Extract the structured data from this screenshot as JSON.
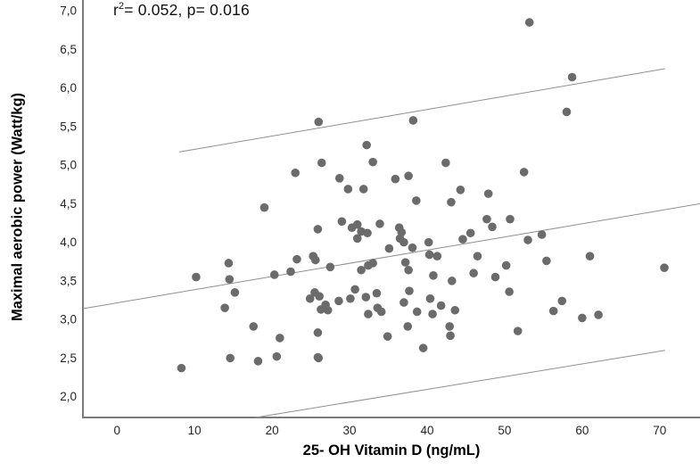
{
  "chart_data": {
    "type": "scatter",
    "title": "",
    "annotation": {
      "r_label": "r",
      "exponent": "2",
      "rest": "= 0.052, p= 0.016"
    },
    "xlabel": "25- OH Vitamin D (ng/mL)",
    "ylabel": "Maximal aerobic power  (Watt/kg)",
    "xlim": [
      -4.4,
      75.2
    ],
    "ylim": [
      1.73,
      7.14
    ],
    "x_ticks": [
      0,
      10,
      20,
      30,
      40,
      50,
      60,
      70
    ],
    "x_tick_labels": [
      "0",
      "10",
      "20",
      "30",
      "40",
      "50",
      "60",
      "70"
    ],
    "y_ticks": [
      2.0,
      2.5,
      3.0,
      3.5,
      4.0,
      4.5,
      5.0,
      5.5,
      6.0,
      6.5,
      7.0
    ],
    "y_tick_labels": [
      "2,0",
      "2,5",
      "3,0",
      "3,5",
      "4,0",
      "4,5",
      "5,0",
      "5,5",
      "6,0",
      "6,5",
      "7,0"
    ],
    "grid": false,
    "legend": "none",
    "point_color": "#6b6b6b",
    "line_color": "#8f8f8f",
    "axis_color": "#7a7a7a",
    "tick_text_color": "#262626",
    "lines": [
      {
        "name": "regression-line",
        "x1": -4.4,
        "y1": 3.14,
        "x2": 75.2,
        "y2": 4.5
      },
      {
        "name": "upper-interval-line",
        "x1": 8.0,
        "y1": 5.17,
        "x2": 70.7,
        "y2": 6.25
      },
      {
        "name": "lower-interval-line",
        "x1": 17.9,
        "y1": 1.73,
        "x2": 70.7,
        "y2": 2.6
      }
    ],
    "points": [
      [
        8.3,
        2.37
      ],
      [
        10.2,
        3.55
      ],
      [
        13.9,
        3.15
      ],
      [
        14.4,
        3.73
      ],
      [
        14.5,
        3.52
      ],
      [
        14.6,
        2.5
      ],
      [
        15.2,
        3.35
      ],
      [
        17.6,
        2.91
      ],
      [
        18.2,
        2.46
      ],
      [
        19.0,
        4.45
      ],
      [
        20.3,
        3.58
      ],
      [
        20.6,
        2.52
      ],
      [
        21.0,
        2.76
      ],
      [
        22.4,
        3.62
      ],
      [
        23.0,
        4.9
      ],
      [
        23.2,
        3.78
      ],
      [
        24.9,
        3.27
      ],
      [
        25.3,
        3.82
      ],
      [
        25.5,
        3.35
      ],
      [
        25.6,
        3.77
      ],
      [
        25.9,
        4.17
      ],
      [
        25.9,
        2.83
      ],
      [
        25.9,
        2.51
      ],
      [
        26.0,
        5.56
      ],
      [
        26.0,
        2.5
      ],
      [
        26.1,
        3.3
      ],
      [
        26.3,
        3.13
      ],
      [
        26.4,
        5.03
      ],
      [
        26.9,
        3.19
      ],
      [
        27.2,
        3.12
      ],
      [
        27.5,
        3.68
      ],
      [
        28.6,
        3.24
      ],
      [
        28.7,
        4.83
      ],
      [
        29.0,
        4.27
      ],
      [
        29.8,
        4.69
      ],
      [
        30.1,
        3.27
      ],
      [
        30.3,
        4.19
      ],
      [
        30.7,
        3.39
      ],
      [
        31.0,
        4.23
      ],
      [
        31.0,
        4.05
      ],
      [
        31.5,
        4.14
      ],
      [
        31.5,
        3.64
      ],
      [
        31.8,
        4.69
      ],
      [
        32.1,
        3.29
      ],
      [
        32.2,
        5.26
      ],
      [
        32.3,
        4.12
      ],
      [
        32.4,
        3.7
      ],
      [
        32.4,
        3.07
      ],
      [
        33.0,
        5.04
      ],
      [
        33.0,
        3.73
      ],
      [
        33.5,
        3.34
      ],
      [
        33.6,
        3.15
      ],
      [
        33.9,
        4.24
      ],
      [
        34.1,
        3.1
      ],
      [
        34.9,
        2.78
      ],
      [
        35.1,
        3.92
      ],
      [
        35.9,
        4.82
      ],
      [
        36.4,
        4.19
      ],
      [
        36.7,
        4.13
      ],
      [
        36.5,
        4.05
      ],
      [
        37.0,
        4.0
      ],
      [
        37.0,
        3.22
      ],
      [
        37.2,
        3.74
      ],
      [
        37.5,
        2.91
      ],
      [
        37.6,
        4.86
      ],
      [
        37.6,
        3.64
      ],
      [
        37.7,
        3.37
      ],
      [
        38.1,
        3.93
      ],
      [
        38.2,
        5.58
      ],
      [
        38.6,
        4.54
      ],
      [
        38.7,
        3.1
      ],
      [
        39.5,
        2.63
      ],
      [
        40.2,
        4.0
      ],
      [
        40.3,
        3.84
      ],
      [
        40.4,
        3.27
      ],
      [
        40.7,
        3.07
      ],
      [
        40.8,
        3.57
      ],
      [
        41.3,
        3.82
      ],
      [
        41.8,
        3.18
      ],
      [
        42.4,
        5.03
      ],
      [
        42.9,
        2.91
      ],
      [
        43.0,
        2.79
      ],
      [
        43.1,
        4.52
      ],
      [
        43.2,
        3.5
      ],
      [
        43.6,
        3.12
      ],
      [
        44.3,
        4.68
      ],
      [
        44.6,
        4.04
      ],
      [
        45.6,
        4.12
      ],
      [
        46.0,
        3.6
      ],
      [
        46.5,
        3.82
      ],
      [
        47.7,
        4.3
      ],
      [
        47.9,
        4.63
      ],
      [
        48.4,
        4.2
      ],
      [
        48.8,
        3.55
      ],
      [
        50.2,
        3.7
      ],
      [
        50.7,
        4.3
      ],
      [
        50.6,
        3.36
      ],
      [
        51.7,
        2.85
      ],
      [
        52.5,
        4.91
      ],
      [
        53.0,
        4.03
      ],
      [
        53.2,
        6.85
      ],
      [
        54.8,
        4.1
      ],
      [
        55.4,
        3.76
      ],
      [
        56.3,
        3.11
      ],
      [
        57.4,
        3.24
      ],
      [
        58.0,
        5.69
      ],
      [
        58.7,
        6.14
      ],
      [
        60.0,
        3.02
      ],
      [
        61.0,
        3.82
      ],
      [
        62.1,
        3.06
      ],
      [
        70.6,
        3.67
      ]
    ]
  }
}
